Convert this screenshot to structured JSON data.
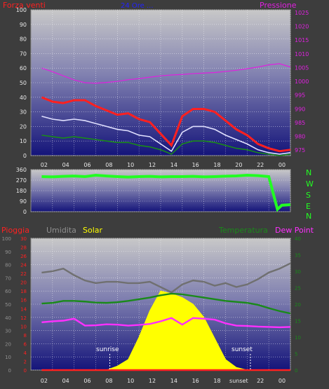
{
  "colors": {
    "background": "#3d3d3d",
    "plot_top": "#c8c8c8",
    "plot_bottom": "#14147a",
    "grid": "#ffffff",
    "wind": "#ff2020",
    "wind_avg": "#e0e0ff",
    "wind_green": "#1a8a1a",
    "pressure": "#e020e0",
    "direction": "#22ff22",
    "rain": "#ff2020",
    "humidity": "#707070",
    "solar": "#ffff00",
    "temperature": "#1a8a1a",
    "dewpoint": "#ff30ff",
    "axis_text": "#e8e8e8"
  },
  "header": {
    "left": "Forza venti",
    "center": "24 Ore ...",
    "right": "Pressione"
  },
  "direction_labels": [
    "N",
    "W",
    "S",
    "E",
    "N"
  ],
  "bottom_header": {
    "rain": "Pioggia",
    "humidity": "Umidita",
    "solar": "Solar",
    "temperature": "Temperatura",
    "dewpoint": "Dew Point"
  },
  "annotations": {
    "sunrise": "sunrise",
    "sunset": "sunset"
  },
  "chart_data": [
    {
      "type": "line",
      "x_ticks": [
        "02",
        "04",
        "06",
        "08",
        "10",
        "12",
        "14",
        "16",
        "18",
        "20",
        "22",
        "00"
      ],
      "y_left_ticks": [
        0,
        10,
        20,
        30,
        40,
        50,
        60,
        70,
        80,
        90,
        100
      ],
      "y_right_ticks": [
        975,
        980,
        985,
        990,
        995,
        1000,
        1005,
        1010,
        1015,
        1020,
        1025
      ],
      "ylim_left": [
        0,
        100
      ],
      "ylim_right": [
        973,
        1026
      ],
      "x": [
        1,
        2,
        3,
        4,
        5,
        6,
        7,
        8,
        9,
        10,
        11,
        12,
        13,
        14,
        15,
        16,
        17,
        18,
        19,
        20,
        21,
        22,
        23,
        24
      ],
      "series": [
        {
          "name": "Forza venti",
          "axis": "left",
          "values": [
            40,
            37,
            36,
            38,
            38,
            34,
            31,
            28,
            29,
            25,
            23,
            15,
            7,
            27,
            32,
            32,
            30,
            24,
            18,
            14,
            8,
            5,
            3,
            4
          ]
        },
        {
          "name": "",
          "axis": "left",
          "values": [
            27,
            25,
            24,
            25,
            24,
            22,
            20,
            18,
            17,
            14,
            13,
            8,
            3,
            16,
            20,
            20,
            18,
            14,
            11,
            8,
            4,
            2,
            1,
            2
          ]
        },
        {
          "name": "",
          "axis": "left",
          "values": [
            14,
            13,
            12,
            13,
            12,
            11,
            10,
            9,
            9,
            7,
            6,
            4,
            1,
            8,
            10,
            10,
            9,
            7,
            5,
            4,
            2,
            1,
            0,
            1
          ]
        },
        {
          "name": "Pressione",
          "axis": "right",
          "values": [
            1004.8,
            1003.5,
            1002,
            1000.5,
            999.5,
            999.3,
            999.6,
            1000,
            1000.6,
            1001,
            1001.5,
            1002,
            1002.3,
            1002.5,
            1002.8,
            1003,
            1003.2,
            1003.6,
            1004,
            1004.6,
            1005.2,
            1006,
            1006.4,
            1005.2
          ]
        }
      ]
    },
    {
      "type": "line",
      "y_ticks": [
        0,
        90,
        180,
        270,
        360
      ],
      "ylim": [
        0,
        360
      ],
      "x": [
        1,
        2,
        3,
        4,
        5,
        6,
        7,
        8,
        9,
        10,
        11,
        12,
        13,
        14,
        15,
        16,
        17,
        18,
        19,
        20,
        21,
        22,
        22.8,
        23.2,
        24
      ],
      "series": [
        {
          "name": "",
          "values": [
            300,
            298,
            302,
            305,
            300,
            312,
            305,
            300,
            296,
            300,
            302,
            298,
            300,
            300,
            302,
            298,
            300,
            304,
            306,
            312,
            308,
            300,
            20,
            55,
            60
          ]
        }
      ]
    },
    {
      "type": "area",
      "x_ticks": [
        "02",
        "04",
        "06",
        "08",
        "10",
        "12",
        "14",
        "16",
        "18",
        "sunset",
        "22",
        "00"
      ],
      "y_humidity_ticks": [
        0,
        10,
        20,
        30,
        40,
        50,
        60,
        70,
        80,
        90,
        100
      ],
      "y_rain_ticks": [
        0,
        2,
        4,
        6,
        8,
        10,
        12,
        14,
        16,
        18,
        20,
        22,
        24,
        26,
        28,
        30
      ],
      "y_temp_ticks": [
        0,
        5,
        10,
        15,
        20,
        25,
        30,
        35,
        40
      ],
      "ylim_humidity": [
        0,
        100
      ],
      "ylim_rain": [
        0,
        30
      ],
      "ylim_temp": [
        0,
        40
      ],
      "x": [
        1,
        2,
        3,
        4,
        5,
        6,
        7,
        8,
        9,
        10,
        11,
        12,
        13,
        14,
        15,
        16,
        17,
        18,
        19,
        20,
        21,
        22,
        23,
        24
      ],
      "series": [
        {
          "name": "Umidita",
          "axis": "humidity",
          "values": [
            74,
            75,
            77,
            72,
            68,
            66,
            67,
            67,
            66,
            66,
            67,
            63,
            59,
            65,
            68,
            67,
            64,
            66,
            63,
            65,
            69,
            74,
            77,
            81
          ]
        },
        {
          "name": "Solar",
          "axis": "humidity",
          "values": [
            0,
            0,
            0,
            0,
            0,
            0,
            0,
            3,
            8,
            25,
            45,
            60,
            58,
            55,
            50,
            40,
            24,
            8,
            2,
            0,
            0,
            0,
            0,
            0
          ]
        },
        {
          "name": "Temperatura",
          "axis": "temp",
          "values": [
            20.2,
            20.4,
            21,
            21,
            20.8,
            20.5,
            20.4,
            20.6,
            21,
            21.5,
            22,
            22.7,
            23.2,
            23,
            22.5,
            22,
            21.5,
            21,
            20.7,
            20.4,
            19.8,
            18.8,
            17.9,
            17.2
          ]
        },
        {
          "name": "Dew Point",
          "axis": "temp",
          "values": [
            14.5,
            14.8,
            15,
            15.6,
            13.5,
            13.6,
            13.9,
            13.8,
            13.5,
            13.7,
            14,
            14.8,
            15.8,
            13.8,
            15.8,
            15.6,
            15.3,
            14.2,
            13.5,
            13.4,
            13.2,
            13.1,
            13,
            13.1
          ]
        },
        {
          "name": "Pioggia",
          "axis": "rain",
          "values": [
            0,
            0,
            0,
            0,
            0,
            0,
            0,
            0,
            0,
            0,
            0,
            0,
            0,
            0,
            0,
            0,
            0,
            0,
            0,
            0,
            0,
            0,
            0,
            0
          ]
        }
      ],
      "markers": [
        {
          "label": "sunrise",
          "x": 7.3
        },
        {
          "label": "sunset",
          "x": 20.3
        }
      ]
    }
  ]
}
